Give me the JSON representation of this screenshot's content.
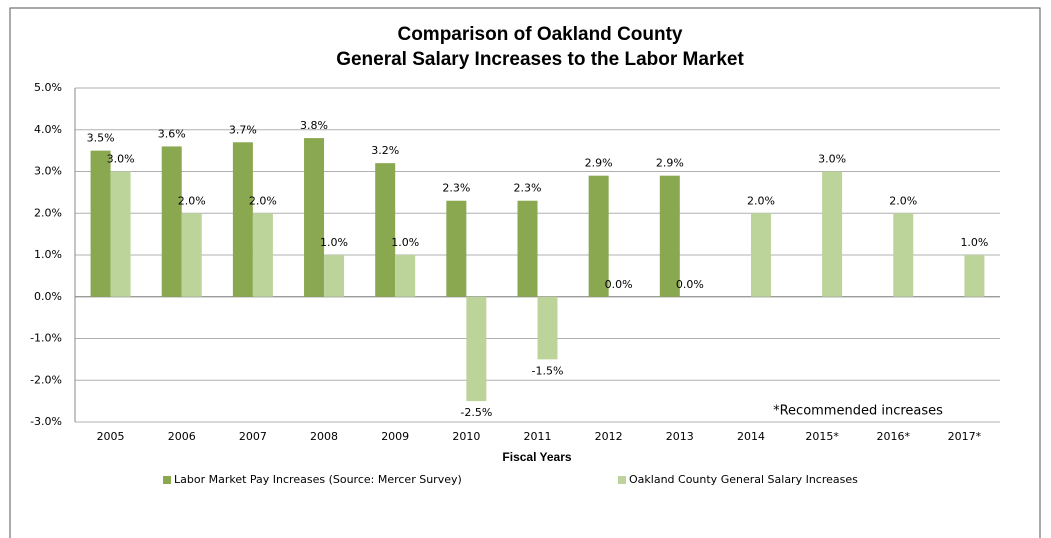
{
  "chart_data": {
    "type": "bar",
    "title": [
      "Comparison of Oakland County",
      "General Salary Increases to the Labor Market"
    ],
    "x_label": "Fiscal Years",
    "annotation": "*Recommended increases",
    "categories": [
      "2005",
      "2006",
      "2007",
      "2008",
      "2009",
      "2010",
      "2011",
      "2012",
      "2013",
      "2014",
      "2015*",
      "2016*",
      "2017*"
    ],
    "series": [
      {
        "name": "Labor Market Pay Increases (Source: Mercer Survey)",
        "color": "#8aa84f",
        "values": [
          3.5,
          3.6,
          3.7,
          3.8,
          3.2,
          2.3,
          2.3,
          2.9,
          2.9,
          null,
          null,
          null,
          null
        ],
        "value_labels": [
          "3.5%",
          "3.6%",
          "3.7%",
          "3.8%",
          "3.2%",
          "2.3%",
          "2.3%",
          "2.9%",
          "2.9%",
          null,
          null,
          null,
          null
        ]
      },
      {
        "name": "Oakland County General Salary Increases",
        "color": "#bcd49a",
        "values": [
          3.0,
          2.0,
          2.0,
          1.0,
          1.0,
          -2.5,
          -1.5,
          0.0,
          0.0,
          2.0,
          3.0,
          2.0,
          1.0
        ],
        "value_labels": [
          "3.0%",
          "2.0%",
          "2.0%",
          "1.0%",
          "1.0%",
          "-2.5%",
          "-1.5%",
          "0.0%",
          "0.0%",
          "2.0%",
          "3.0%",
          "2.0%",
          "1.0%"
        ]
      }
    ],
    "ylim": [
      -3,
      5
    ],
    "yticks": [
      {
        "value": -3,
        "label": "-3.0%"
      },
      {
        "value": -2,
        "label": "-2.0%"
      },
      {
        "value": -1,
        "label": "-1.0%"
      },
      {
        "value": 0,
        "label": "0.0%"
      },
      {
        "value": 1,
        "label": "1.0%"
      },
      {
        "value": 2,
        "label": "2.0%"
      },
      {
        "value": 3,
        "label": "3.0%"
      },
      {
        "value": 4,
        "label": "4.0%"
      },
      {
        "value": 5,
        "label": "5.0%"
      }
    ],
    "grid": true,
    "legend": "bottom"
  }
}
